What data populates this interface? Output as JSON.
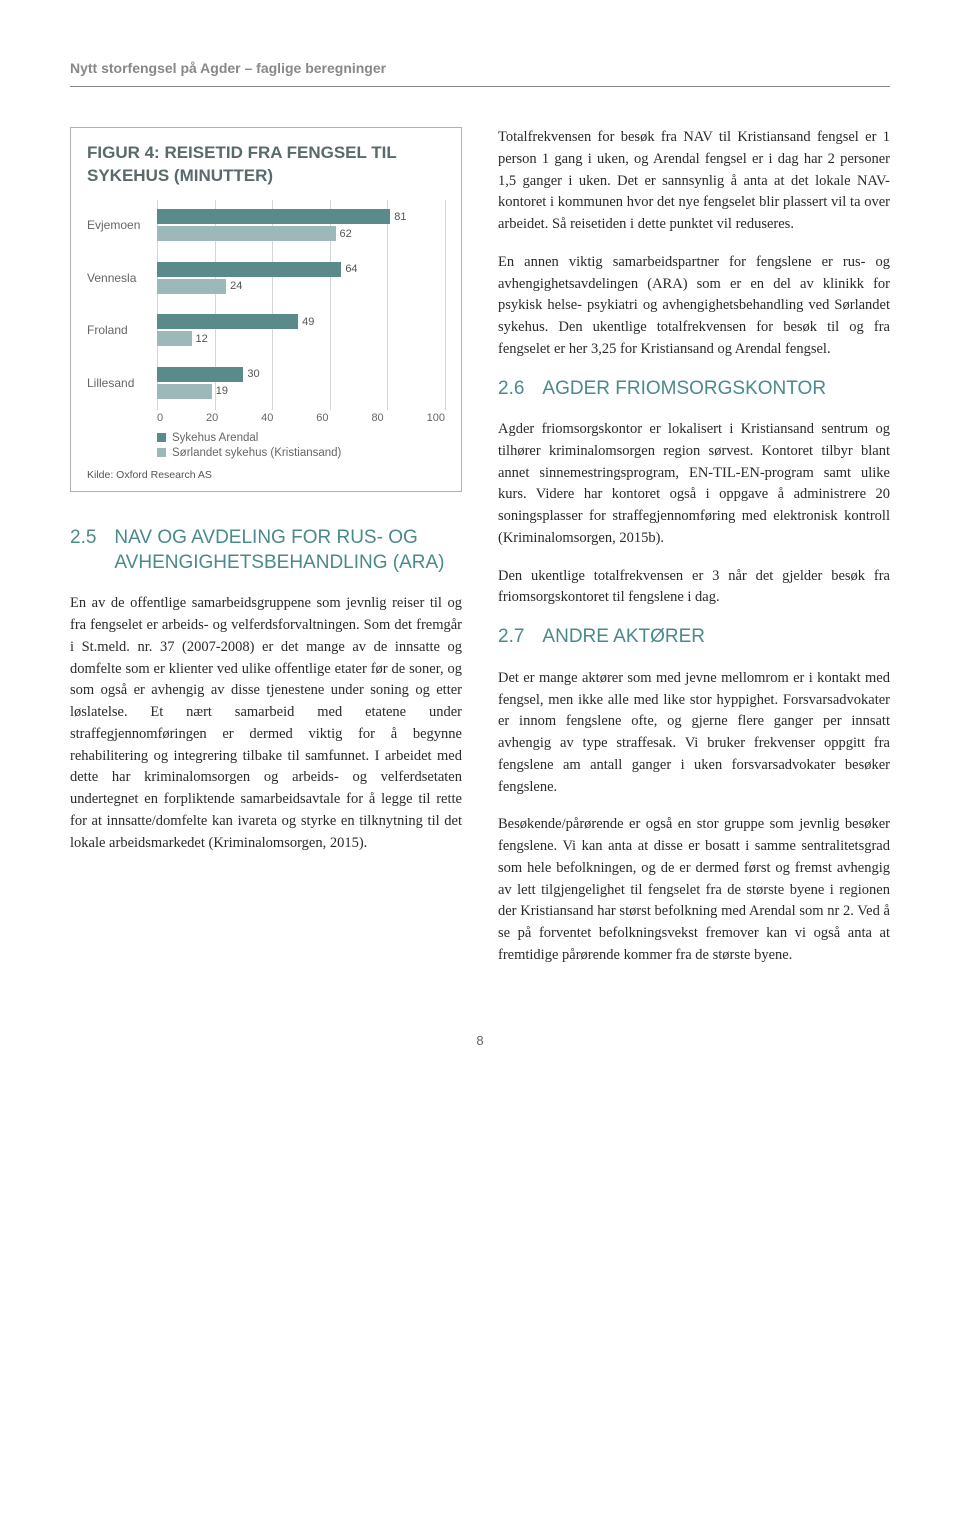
{
  "running_head": "Nytt storfengsel på Agder – faglige beregninger",
  "figure": {
    "title": "FIGUR 4: REISETID FRA FENGSEL TIL SYKEHUS (MINUTTER)",
    "type": "bar",
    "categories": [
      "Evjemoen",
      "Vennesla",
      "Froland",
      "Lillesand"
    ],
    "series": [
      {
        "name": "Sykehus Arendal",
        "color": "#5b8a8a",
        "values": [
          81,
          64,
          49,
          30
        ]
      },
      {
        "name": "Sørlandet sykehus (Kristiansand)",
        "color": "#9cb8b8",
        "values": [
          62,
          24,
          12,
          19
        ]
      }
    ],
    "xmax": 100,
    "xticks": [
      0,
      20,
      40,
      60,
      80,
      100
    ],
    "source": "Kilde: Oxford Research AS",
    "axis_font_size": 11,
    "label_color": "#666",
    "grid_color": "#d6d6d6",
    "background": "#ffffff"
  },
  "left": {
    "sec25_num": "2.5",
    "sec25_title": "NAV OG AVDELING FOR RUS- OG AVHENGIGHETSBEHANDLING (ARA)",
    "p1": "En av de offentlige samarbeidsgruppene som jevnlig reiser til og fra fengselet er arbeids- og velferdsforvaltningen. Som det fremgår i St.meld. nr. 37 (2007-2008) er det mange av de innsatte og domfelte som er klienter ved ulike offentlige etater før de soner, og som også er avhengig av disse tjenestene under soning og etter løslatelse. Et nært samarbeid med etatene under straffegjennomføringen er dermed viktig for å begynne rehabilitering og integrering tilbake til samfunnet. I arbeidet med dette har kriminalomsorgen og arbeids- og velferdsetaten undertegnet en forpliktende samarbeidsavtale for å legge til rette for at innsatte/domfelte kan ivareta og styrke en tilknytning til det lokale arbeidsmarkedet (Kriminalomsorgen, 2015)."
  },
  "right": {
    "p1": "Totalfrekvensen for besøk fra NAV til Kristiansand fengsel er 1 person 1 gang i uken, og Arendal fengsel er i dag har 2 personer 1,5 ganger i uken. Det er sannsynlig å anta at det lokale NAV-kontoret i kommunen hvor det nye fengselet blir plassert vil ta over arbeidet. Så reisetiden i dette punktet vil reduseres.",
    "p2": "En annen viktig samarbeidspartner for fengslene er rus- og avhengighetsavdelingen (ARA) som er en del av klinikk for psykisk helse- psykiatri og avhengighetsbehandling ved Sørlandet sykehus. Den ukentlige totalfrekvensen for besøk til og fra fengselet er her 3,25 for Kristiansand og Arendal fengsel.",
    "sec26_num": "2.6",
    "sec26_title": "AGDER FRIOMSORGSKONTOR",
    "p3": "Agder friomsorgskontor er lokalisert i Kristiansand sentrum og tilhører kriminalomsorgen region sørvest. Kontoret tilbyr blant annet sinnemestringsprogram, EN-TIL-EN-program samt ulike kurs. Videre har kontoret også i oppgave å administrere 20 soningsplasser for straffegjennomføring med elektronisk kontroll (Kriminalomsorgen, 2015b).",
    "p4": "Den ukentlige totalfrekvensen er 3 når det gjelder besøk fra friomsorgskontoret til fengslene i dag.",
    "sec27_num": "2.7",
    "sec27_title": "ANDRE AKTØRER",
    "p5": "Det er mange aktører som med jevne mellomrom er i kontakt med fengsel, men ikke alle med like stor hyppighet. Forsvarsadvokater er innom fengslene ofte, og gjerne flere ganger per innsatt avhengig av type straffesak. Vi bruker frekvenser oppgitt fra fengslene am antall ganger i uken forsvarsadvokater besøker fengslene.",
    "p6": "Besøkende/pårørende er også en stor gruppe som jevnlig besøker fengslene. Vi kan anta at disse er bosatt i samme sentralitetsgrad som hele befolkningen, og de er dermed først og fremst avhengig av lett tilgjengelighet til fengselet fra de største byene i regionen der Kristiansand har størst befolkning med Arendal som nr 2. Ved å se på forventet befolkningsvekst fremover kan vi også anta at fremtidige pårørende kommer fra de største byene."
  },
  "page_number": "8"
}
